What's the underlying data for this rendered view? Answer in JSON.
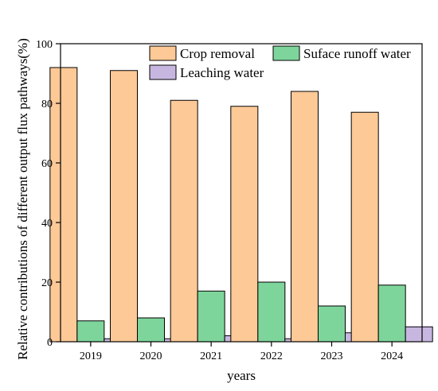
{
  "chart_data": {
    "type": "bar",
    "xlabel": "years",
    "ylabel": "Relative contributions of different output flux pathways(%)",
    "categories": [
      "2019",
      "2020",
      "2021",
      "2022",
      "2023",
      "2024"
    ],
    "ylim": [
      0,
      100
    ],
    "yticks": [
      0,
      20,
      40,
      60,
      80,
      100
    ],
    "grid": false,
    "legend_position": "top-right",
    "series": [
      {
        "name": "Crop removal",
        "color": "#FDC997",
        "values": [
          92,
          91,
          81,
          79,
          84,
          77
        ]
      },
      {
        "name": "Suface runoff water",
        "color": "#7ED59B",
        "values": [
          7,
          8,
          17,
          20,
          12,
          19
        ]
      },
      {
        "name": "Leaching water",
        "color": "#C7B7E0",
        "values": [
          1,
          1,
          2,
          1,
          3,
          5
        ]
      }
    ]
  }
}
